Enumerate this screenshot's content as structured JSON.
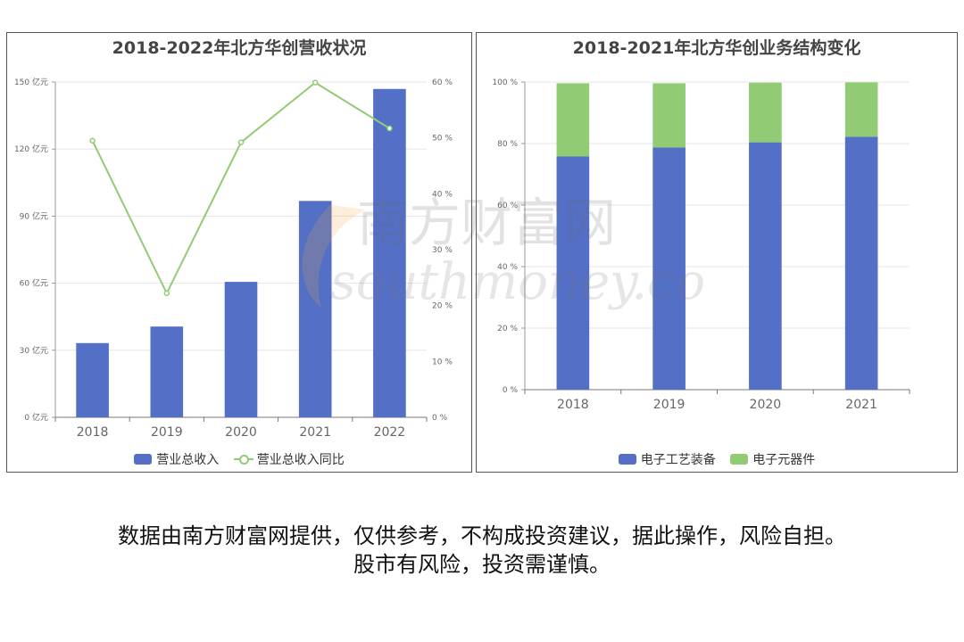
{
  "chart_data": [
    {
      "type": "bar",
      "title": "2018-2022年北方华创营收状况",
      "categories": [
        "2018",
        "2019",
        "2020",
        "2021",
        "2022"
      ],
      "series": [
        {
          "name": "营业总收入",
          "type": "bar",
          "axis": "left",
          "values": [
            33.2,
            40.6,
            60.6,
            96.8,
            146.9
          ]
        },
        {
          "name": "营业总收入同比",
          "type": "line",
          "axis": "right",
          "values": [
            49.5,
            22.2,
            49.2,
            59.9,
            51.7
          ]
        }
      ],
      "y_left": {
        "ticks": [
          "0 亿元",
          "30 亿元",
          "60 亿元",
          "90 亿元",
          "120 亿元",
          "150 亿元"
        ],
        "ylim": [
          0,
          150
        ]
      },
      "y_right": {
        "ticks": [
          "0 %",
          "10 %",
          "20 %",
          "30 %",
          "40 %",
          "50 %",
          "60 %"
        ],
        "ylim": [
          0,
          60
        ]
      },
      "grid": true,
      "legend_position": "bottom",
      "colors": {
        "bar": "#5470c6",
        "line": "#91cc75"
      }
    },
    {
      "type": "bar",
      "stacked": true,
      "title": "2018-2021年北方华创业务结构变化",
      "categories": [
        "2018",
        "2019",
        "2020",
        "2021"
      ],
      "series": [
        {
          "name": "电子工艺装备",
          "values": [
            75.8,
            78.7,
            80.4,
            82.2
          ]
        },
        {
          "name": "电子元器件",
          "values": [
            23.8,
            20.9,
            19.4,
            17.7
          ]
        }
      ],
      "y": {
        "ticks": [
          "0 %",
          "20 %",
          "40 %",
          "60 %",
          "80 %",
          "100 %"
        ],
        "ylim": [
          0,
          100
        ]
      },
      "grid": true,
      "legend_position": "bottom",
      "colors": {
        "series0": "#5470c6",
        "series1": "#91cc75"
      }
    }
  ],
  "watermark": {
    "text1": "南方财富网",
    "text2": "southmoney.com"
  },
  "disclaimer": {
    "line1": "数据由南方财富网提供，仅供参考，不构成投资建议，据此操作，风险自担。",
    "line2": "股市有风险，投资需谨慎。"
  }
}
